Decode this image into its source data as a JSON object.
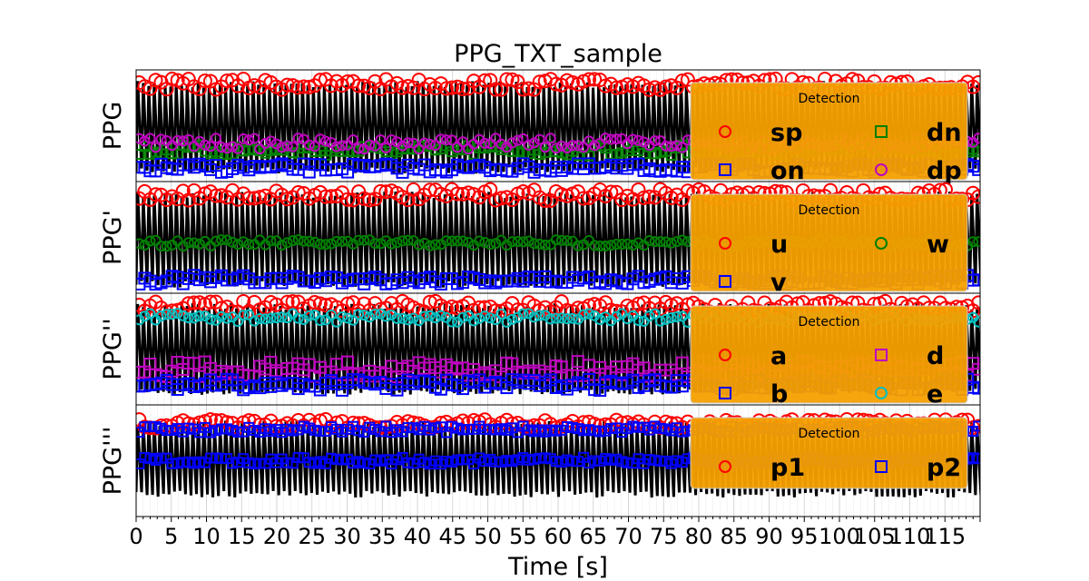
{
  "chart_data": {
    "type": "line",
    "title": "PPG_TXT_sample",
    "xlabel": "Time [s]",
    "xlim": [
      0,
      120
    ],
    "xticks": [
      0,
      5,
      10,
      15,
      20,
      25,
      30,
      35,
      40,
      45,
      50,
      55,
      60,
      65,
      70,
      75,
      80,
      85,
      90,
      95,
      100,
      105,
      110,
      115
    ],
    "xtick_labels": [
      "0",
      "5",
      "10",
      "15",
      "20",
      "25",
      "30",
      "35",
      "40",
      "45",
      "50",
      "55",
      "60",
      "65",
      "70",
      "75",
      "80",
      "85",
      "90",
      "95",
      "100",
      "105",
      "110",
      "115"
    ],
    "grid": true,
    "legend_placement": "upper-right",
    "panels": [
      {
        "ylabel": "PPG",
        "signal_color": "#000000",
        "legend": {
          "title": "Detection",
          "ncol": 2,
          "entries": [
            {
              "label": "sp",
              "marker": "circle",
              "color": "#ff0000"
            },
            {
              "label": "dn",
              "marker": "square",
              "color": "#008000"
            },
            {
              "label": "on",
              "marker": "square",
              "color": "#0000ff"
            },
            {
              "label": "dp",
              "marker": "circle",
              "color": "#bf00bf"
            }
          ]
        }
      },
      {
        "ylabel": "PPG'",
        "signal_color": "#000000",
        "legend": {
          "title": "Detection",
          "ncol": 2,
          "entries": [
            {
              "label": "u",
              "marker": "circle",
              "color": "#ff0000"
            },
            {
              "label": "w",
              "marker": "circle",
              "color": "#008000"
            },
            {
              "label": "v",
              "marker": "square",
              "color": "#0000ff"
            }
          ]
        }
      },
      {
        "ylabel": "PPG''",
        "signal_color": "#000000",
        "legend": {
          "title": "Detection",
          "ncol": 2,
          "entries": [
            {
              "label": "a",
              "marker": "circle",
              "color": "#ff0000"
            },
            {
              "label": "d",
              "marker": "square",
              "color": "#bf00bf"
            },
            {
              "label": "b",
              "marker": "square",
              "color": "#0000ff"
            },
            {
              "label": "e",
              "marker": "circle",
              "color": "#00bfbf"
            }
          ]
        }
      },
      {
        "ylabel": "PPG'''",
        "signal_color": "#000000",
        "legend": {
          "title": "Detection",
          "ncol": 2,
          "entries": [
            {
              "label": "p1",
              "marker": "circle",
              "color": "#ff0000"
            },
            {
              "label": "p2",
              "marker": "square",
              "color": "#0000ff"
            }
          ]
        }
      }
    ],
    "legend_facecolor": "#f5a000"
  }
}
